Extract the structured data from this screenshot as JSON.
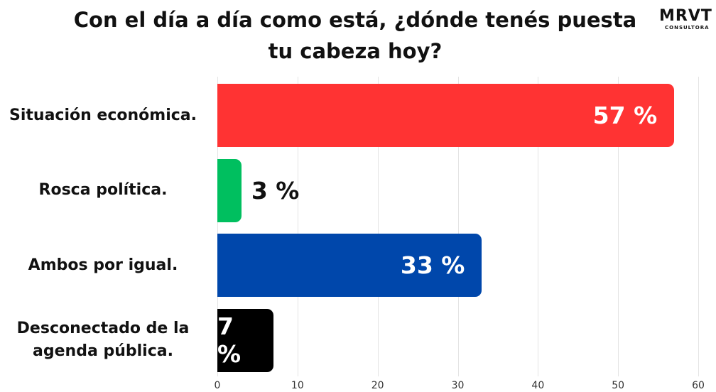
{
  "chart_data": {
    "type": "bar",
    "orientation": "horizontal",
    "title": "Con el día a día como está, ¿dónde tenés puesta tu cabeza hoy?",
    "logo": {
      "name": "MRVT",
      "subtitle": "CONSULTORA"
    },
    "categories": [
      "Situación económica.",
      "Rosca política.",
      "Ambos por igual.",
      "Desconectado de la agenda pública."
    ],
    "values": [
      57,
      3,
      33,
      7
    ],
    "value_labels": [
      "57 %",
      "3 %",
      "33 %",
      "7 %"
    ],
    "colors": [
      "#ff3333",
      "#00bf5f",
      "#0047ab",
      "#000000"
    ],
    "xlim": [
      0,
      60
    ],
    "xticks": [
      0,
      10,
      20,
      30,
      40,
      50,
      60
    ],
    "grid": true
  }
}
